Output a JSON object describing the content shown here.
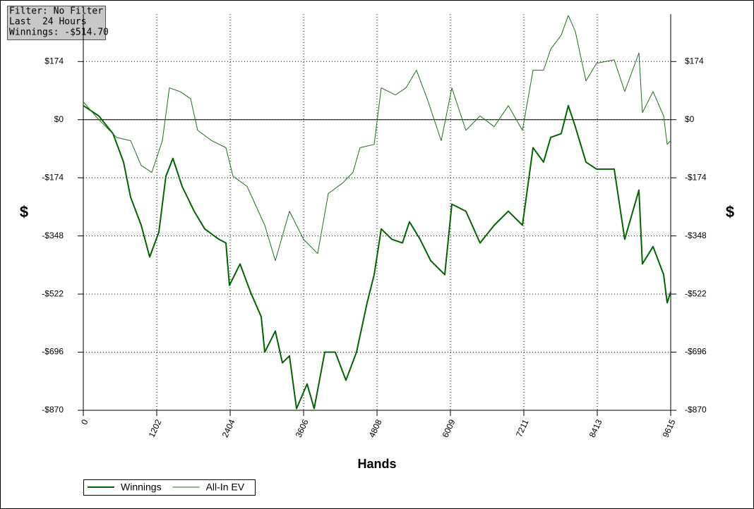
{
  "filter_box": [
    "Filter: No Filter",
    "Last  24 Hours",
    "Winnings: -$514.70"
  ],
  "chart_data": {
    "type": "line",
    "x_label": "Hands",
    "y_label": "$",
    "y2_label": "$",
    "xlim": [
      0,
      9615
    ],
    "xticks": [
      0,
      1202,
      2404,
      3606,
      4808,
      6009,
      7211,
      8413,
      9615
    ],
    "ylim": [
      -870,
      316
    ],
    "yticks": [
      {
        "value": -870,
        "label": "-$870"
      },
      {
        "value": -696,
        "label": "-$696"
      },
      {
        "value": -522,
        "label": "-$522"
      },
      {
        "value": -348,
        "label": "-$348"
      },
      {
        "value": -174,
        "label": "-$174"
      },
      {
        "value": 0,
        "label": "$0"
      },
      {
        "value": 174,
        "label": "$174"
      }
    ],
    "grid": true,
    "zero_line": true,
    "legend": "bottom-left",
    "series": [
      {
        "name": "Winnings",
        "color": "#006400",
        "x": [
          0,
          254,
          486,
          659,
          774,
          948,
          1086,
          1236,
          1352,
          1467,
          1618,
          1814,
          1988,
          2219,
          2334,
          2392,
          2565,
          2739,
          2912,
          2970,
          3143,
          3259,
          3374,
          3490,
          3663,
          3779,
          3952,
          4125,
          4299,
          4472,
          4646,
          4761,
          4877,
          5050,
          5223,
          5339,
          5512,
          5686,
          5917,
          6032,
          6263,
          6495,
          6726,
          6957,
          7188,
          7361,
          7534,
          7650,
          7823,
          7939,
          8054,
          8228,
          8401,
          8690,
          8863,
          9095,
          9152,
          9326,
          9499,
          9557,
          9615
        ],
        "values": [
          42,
          11,
          -42,
          -127,
          -232,
          -316,
          -411,
          -337,
          -169,
          -116,
          -200,
          -274,
          -327,
          -358,
          -369,
          -496,
          -432,
          -517,
          -590,
          -696,
          -633,
          -728,
          -707,
          -865,
          -791,
          -865,
          -696,
          -696,
          -780,
          -696,
          -548,
          -464,
          -327,
          -358,
          -369,
          -306,
          -358,
          -422,
          -464,
          -253,
          -274,
          -369,
          -316,
          -274,
          -316,
          -84,
          -127,
          -53,
          -42,
          42,
          -21,
          -127,
          -148,
          -148,
          -358,
          -211,
          -432,
          -380,
          -464,
          -548,
          -515
        ]
      },
      {
        "name": "All-In EV",
        "color": "#1f6f1f",
        "x": [
          0,
          254,
          543,
          774,
          948,
          1121,
          1294,
          1409,
          1583,
          1756,
          1872,
          2103,
          2334,
          2450,
          2681,
          2970,
          3143,
          3374,
          3605,
          3837,
          4010,
          4241,
          4414,
          4530,
          4761,
          4877,
          5108,
          5281,
          5454,
          5628,
          5859,
          6032,
          6263,
          6495,
          6726,
          6957,
          7188,
          7361,
          7534,
          7650,
          7823,
          7939,
          8054,
          8228,
          8401,
          8690,
          8863,
          9095,
          9152,
          9326,
          9499,
          9557,
          9615
        ],
        "values": [
          53,
          0,
          -53,
          -63,
          -137,
          -158,
          -63,
          95,
          84,
          63,
          -32,
          -63,
          -84,
          -169,
          -200,
          -316,
          -422,
          -274,
          -358,
          -401,
          -221,
          -190,
          -158,
          -84,
          -74,
          95,
          74,
          95,
          148,
          63,
          -63,
          95,
          -32,
          11,
          -21,
          42,
          -32,
          148,
          148,
          211,
          253,
          312,
          264,
          116,
          169,
          179,
          84,
          200,
          21,
          84,
          11,
          -74,
          -63
        ]
      }
    ]
  }
}
